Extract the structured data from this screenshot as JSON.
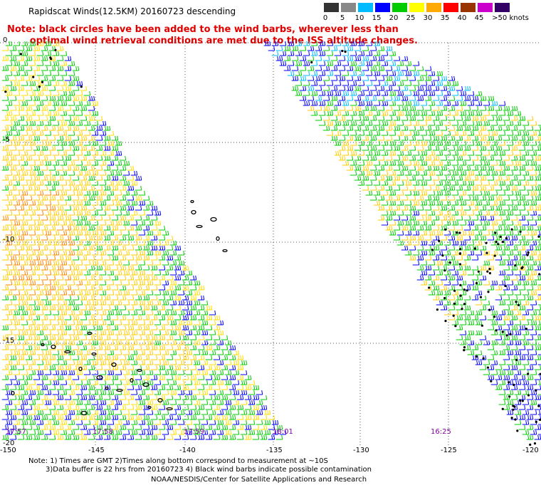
{
  "title": "Rapidscat Winds(12.5KM) 20160723 descending",
  "note": {
    "line1": "Note: black circles have been added to the wind barbs, wherever less than",
    "line2": "optimal wind retrieval conditions are met due to the ISS altitude changes."
  },
  "legend": {
    "labels": [
      "0",
      "5",
      "10",
      "15",
      "20",
      "25",
      "30",
      "35",
      "40",
      "45",
      ">50 knots"
    ],
    "colors": [
      "#333333",
      "#888888",
      "#00bbff",
      "#0000ff",
      "#00cc00",
      "#ffff00",
      "#ffaa00",
      "#ff0000",
      "#993300",
      "#cc00cc",
      "#330066"
    ],
    "units": "knots"
  },
  "axes": {
    "lat_labels": [
      "0",
      "-5",
      "-10",
      "-15",
      "-20"
    ],
    "lon_labels": [
      "-150",
      "-145",
      "-140",
      "-135",
      "-130",
      "-125",
      "-120"
    ]
  },
  "times": [
    "17:57",
    "17:58",
    "17:59",
    "18:01",
    "16:25"
  ],
  "footer": {
    "line1": "Note: 1) Times are GMT 2)Times along bottom correspond to measurement at ~10S",
    "line2": "3)Data buffer is 22 hrs from 20160723 4) Black wind barbs indicate possible contamination",
    "line3": "NOAA/NESDIS/Center for Satellite Applications and Research"
  }
}
